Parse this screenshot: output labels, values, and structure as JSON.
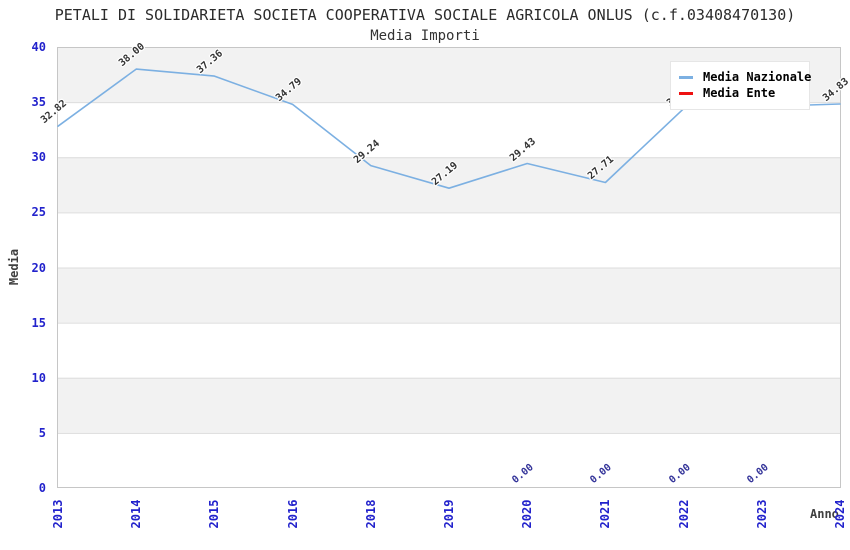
{
  "page": {
    "title": "PETALI DI SOLIDARIETA SOCIETA COOPERATIVA SOCIALE AGRICOLA ONLUS (c.f.03408470130)",
    "subtitle": "Media Importi"
  },
  "colors": {
    "band_gray": "#f2f2f2",
    "band_white": "#ffffff",
    "grid": "#dcdcdc",
    "border": "#c6c6c6",
    "tick_label": "#2222cc",
    "title_text": "#2b2b2b",
    "axis_title_text": "#404040",
    "nazionale_line": "#7cb0e2",
    "ente_line": "#ee1111",
    "nazionale_value_label": "#333333",
    "ente_value_label": "#333399"
  },
  "legend": {
    "position": "top-right",
    "items": [
      {
        "label": "Media Nazionale",
        "color": "#7cb0e2"
      },
      {
        "label": "Media Ente",
        "color": "#ee1111"
      }
    ]
  },
  "chart_data": {
    "type": "line",
    "title": "Media Importi",
    "xlabel": "Anno",
    "ylabel": "Media",
    "x_categories": [
      "2013",
      "2014",
      "2015",
      "2016",
      "2018",
      "2019",
      "2020",
      "2021",
      "2022",
      "2023",
      "2024"
    ],
    "ylim": [
      0,
      40
    ],
    "yticks": [
      0,
      5,
      10,
      15,
      20,
      25,
      30,
      35,
      40
    ],
    "grid": "horizontal bands, alternating gray/white every 5 units",
    "legend_position": "top-right inside plot",
    "series": [
      {
        "name": "Media Nazionale",
        "color": "#7cb0e2",
        "label_color": "#333333",
        "line_visible": true,
        "values": [
          32.82,
          38.0,
          37.36,
          34.79,
          29.24,
          27.19,
          29.43,
          27.71,
          34.4,
          34.6,
          34.83
        ],
        "note": "2022 and 2023 point labels are occluded by the legend box; values estimated from line position"
      },
      {
        "name": "Media Ente",
        "color": "#ee1111",
        "label_color": "#333399",
        "line_visible": false,
        "values": [
          null,
          null,
          null,
          null,
          null,
          null,
          0.0,
          0.0,
          0.0,
          0.0,
          null
        ],
        "note": "line lies on y=0 axis and is not visible; only 0.00 labels show"
      }
    ]
  }
}
